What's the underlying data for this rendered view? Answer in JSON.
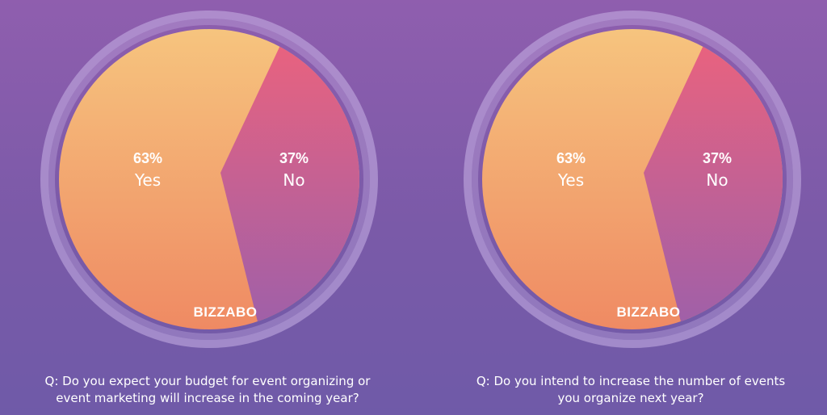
{
  "chart_data": [
    {
      "type": "pie",
      "slices": [
        {
          "label": "Yes",
          "value": 63,
          "display": "63%"
        },
        {
          "label": "No",
          "value": 37,
          "display": "37%"
        }
      ],
      "colors": {
        "Yes": [
          "#f6c47e",
          "#ef8a63"
        ],
        "No": [
          "#e8627f",
          "#a060a8"
        ]
      },
      "logo": "BIZZABO",
      "caption_lines": [
        "Q: Do you expect your budget for event organizing or",
        "event marketing will increase in the coming year?"
      ]
    },
    {
      "type": "pie",
      "slices": [
        {
          "label": "Yes",
          "value": 63,
          "display": "63%"
        },
        {
          "label": "No",
          "value": 37,
          "display": "37%"
        }
      ],
      "colors": {
        "Yes": [
          "#f6c47e",
          "#ef8a63"
        ],
        "No": [
          "#e8627f",
          "#a060a8"
        ]
      },
      "logo": "BIZZABO",
      "caption_lines": [
        "Q: Do you intend to increase the number of events",
        "you organize next year?"
      ]
    }
  ],
  "theme": {
    "background": "#7f5aa8",
    "label_color": "#ffffff",
    "ring_color": "#c9b3e6"
  }
}
